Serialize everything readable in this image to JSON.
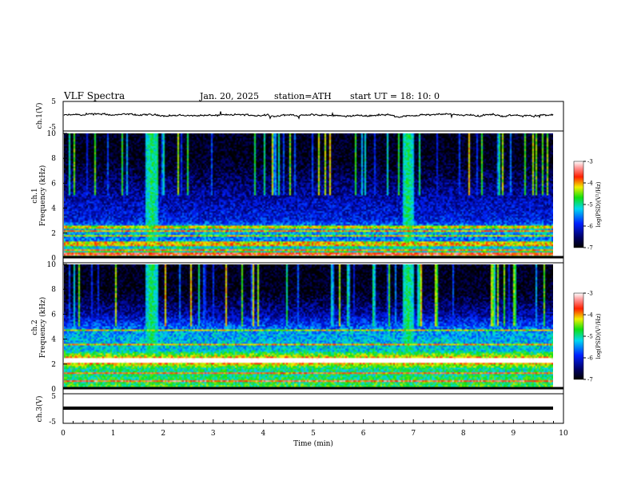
{
  "header": {
    "title": "VLF  Spectra",
    "date": "Jan. 20, 2025",
    "station": "station=ATH",
    "start": "start  UT  =    18: 10: 0"
  },
  "panels": {
    "ch1_wave": {
      "ylabel": "ch.1(V)",
      "yticks": [
        "5",
        "-5"
      ]
    },
    "ch1_spec": {
      "ylabel_top": "ch.1",
      "ylabel": "Frequency  (kHz)",
      "yticks": [
        "10",
        "8",
        "6",
        "4",
        "2",
        "0"
      ]
    },
    "ch2_spec": {
      "ylabel_top": "ch.2",
      "ylabel": "Frequency  (kHz)",
      "yticks": [
        "10",
        "8",
        "6",
        "4",
        "2",
        "0"
      ]
    },
    "ch3_wave": {
      "ylabel": "ch.3(V)",
      "yticks": [
        "5",
        "-5"
      ]
    }
  },
  "xaxis": {
    "label": "Time  (min)",
    "ticks": [
      "0",
      "1",
      "2",
      "3",
      "4",
      "5",
      "6",
      "7",
      "8",
      "9",
      "10"
    ]
  },
  "colorbars": [
    {
      "label": "log(PSD)(V²/Hz)",
      "ticks": [
        "-3",
        "-4",
        "-5",
        "-6",
        "-7"
      ]
    },
    {
      "label": "log(PSD)(V²/Hz)",
      "ticks": [
        "-3",
        "-4",
        "-5",
        "-6",
        "-7"
      ]
    }
  ],
  "colors": {
    "low": "#000033",
    "mid_blue": "#1030ff",
    "cyan": "#00e0e0",
    "green": "#20e020",
    "yellow": "#f0f000",
    "red": "#e00000",
    "white": "#ffffff"
  },
  "chart_data": [
    {
      "type": "line",
      "name": "ch.1 waveform",
      "x_range": [
        0,
        10
      ],
      "ylim": [
        -5,
        5
      ],
      "mean_level": 0.2,
      "fluctuation": 0.5,
      "xlabel": "",
      "ylabel": "ch.1(V)"
    },
    {
      "type": "heatmap",
      "name": "ch.1 spectrogram",
      "x_range": [
        0,
        9.8
      ],
      "ylim": [
        0,
        10
      ],
      "xlabel": "Time  (min)",
      "ylabel": "Frequency  (kHz)",
      "colorscale_range": [
        -7,
        -3
      ],
      "background_log_psd": [
        {
          "f": 0.5,
          "v": -5.0
        },
        {
          "f": 1.5,
          "v": -5.6
        },
        {
          "f": 2.1,
          "v": -5.2
        },
        {
          "f": 3.0,
          "v": -6.0
        },
        {
          "f": 4.5,
          "v": -6.2
        },
        {
          "f": 6.0,
          "v": -6.5
        },
        {
          "f": 8.0,
          "v": -6.9
        },
        {
          "f": 10.0,
          "v": -6.9
        }
      ],
      "tone_lines_khz": [
        0.2,
        0.5,
        0.9,
        1.1,
        1.7,
        2.1,
        2.4
      ],
      "bursts_min": [
        1.75,
        6.9
      ]
    },
    {
      "type": "heatmap",
      "name": "ch.2 spectrogram",
      "x_range": [
        0,
        9.8
      ],
      "ylim": [
        0,
        10
      ],
      "xlabel": "Time  (min)",
      "ylabel": "Frequency  (kHz)",
      "colorscale_range": [
        -7,
        -3
      ],
      "background_log_psd": [
        {
          "f": 0.5,
          "v": -4.8
        },
        {
          "f": 1.5,
          "v": -5.0
        },
        {
          "f": 2.2,
          "v": -3.6
        },
        {
          "f": 3.0,
          "v": -5.2
        },
        {
          "f": 4.5,
          "v": -5.4
        },
        {
          "f": 6.0,
          "v": -6.3
        },
        {
          "f": 8.0,
          "v": -6.9
        },
        {
          "f": 10.0,
          "v": -6.9
        }
      ],
      "tone_lines_khz": [
        0.5,
        1.2,
        2.05,
        2.25,
        3.5,
        4.7
      ],
      "bursts_min": [
        1.75,
        6.9
      ]
    },
    {
      "type": "line",
      "name": "ch.3 waveform",
      "x_range": [
        0,
        9.8
      ],
      "ylim": [
        -5,
        5
      ],
      "mean_level": 0.0,
      "fluctuation": 0.0,
      "xlabel": "Time  (min)",
      "ylabel": "ch.3(V)"
    }
  ]
}
